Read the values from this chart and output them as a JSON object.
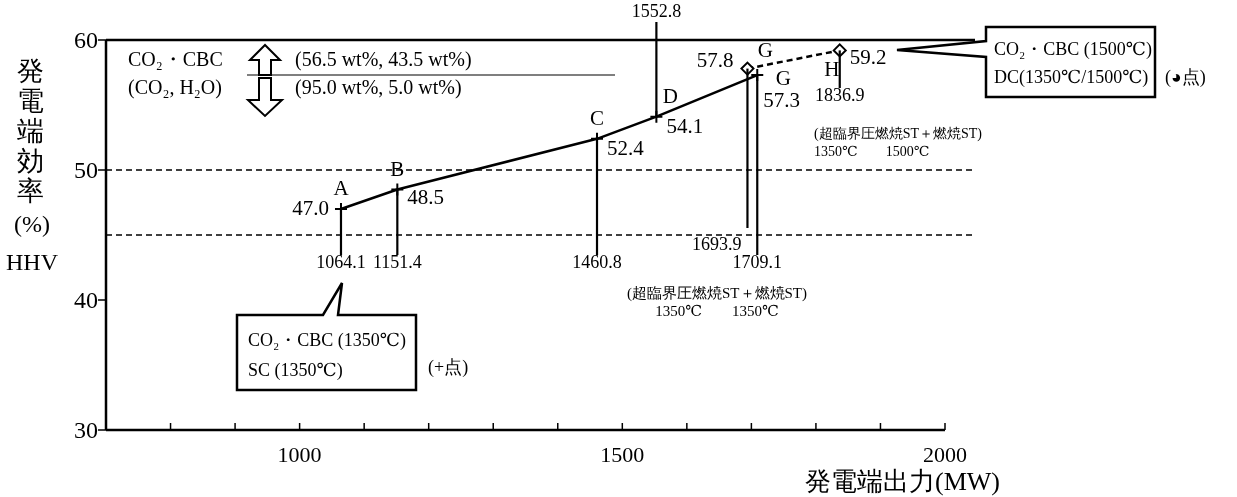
{
  "chart_data": {
    "type": "line",
    "xlabel": "発電端出力(MW)",
    "ylabel": "発電端効率\n(%)\nHHV",
    "xlim": [
      700,
      2000
    ],
    "xticks": [
      {
        "value": 700,
        "label": null
      },
      {
        "value": 800,
        "label": null
      },
      {
        "value": 900,
        "label": null
      },
      1000,
      {
        "value": 1100,
        "label": null
      },
      {
        "value": 1200,
        "label": null
      },
      {
        "value": 1300,
        "label": null
      },
      {
        "value": 1400,
        "label": null
      },
      1500,
      {
        "value": 1600,
        "label": null
      },
      {
        "value": 1700,
        "label": null
      },
      {
        "value": 1800,
        "label": null
      },
      {
        "value": 1900,
        "label": null
      },
      2000
    ],
    "ylim": [
      30,
      60
    ],
    "yticks": [
      30,
      40,
      50,
      60
    ],
    "grid": false,
    "series": [
      {
        "x": [
          1064.1,
          1151.4,
          1460.8,
          1552.8,
          1709.1
        ],
        "values": [
          47.0,
          48.5,
          52.4,
          54.1,
          57.3
        ],
        "color": "#000000",
        "marker": "cross",
        "line_style": "solid",
        "value_labels": [
          "47.0",
          "48.5",
          "52.4",
          "54.1",
          "57.3"
        ]
      },
      {
        "x": [
          1693.9,
          1836.9
        ],
        "values": [
          57.8,
          59.2
        ],
        "color": "#000000",
        "marker": "diamond",
        "line_style": "dashed",
        "value_labels": [
          "57.8",
          "59.2"
        ]
      }
    ],
    "ref_lines": [
      {
        "axis": "y",
        "value": 60,
        "color": "#000000",
        "line_style": "solid"
      },
      {
        "axis": "y",
        "value": 50,
        "color": "#000000",
        "line_style": "dashed"
      },
      {
        "axis": "y",
        "value": 45,
        "color": "#000000",
        "line_style": "dashed"
      }
    ],
    "annotations": [
      {
        "text": "A",
        "x": 1064.1,
        "y": 47.0
      },
      {
        "text": "B",
        "x": 1151.4,
        "y": 48.5
      },
      {
        "text": "C",
        "x": 1460.8,
        "y": 52.4
      },
      {
        "text": "D",
        "x": 1552.8,
        "y": 54.1
      },
      {
        "text": "G",
        "x": 1693.9,
        "y": 57.8
      },
      {
        "text": "G",
        "x": 1709.1,
        "y": 57.3
      },
      {
        "text": "H",
        "x": 1836.9,
        "y": 59.2
      },
      {
        "text": "1064.1",
        "x": 1064.1,
        "y": 47.0
      },
      {
        "text": "1151.4",
        "x": 1151.4,
        "y": 48.5
      },
      {
        "text": "1460.8",
        "x": 1460.8,
        "y": 52.4
      },
      {
        "text": "1552.8",
        "x": 1552.8,
        "y": 54.1
      },
      {
        "text": "1693.9",
        "x": 1693.9,
        "y": 57.8
      },
      {
        "text": "1709.1",
        "x": 1709.1,
        "y": 57.3
      },
      {
        "text": "1836.9",
        "x": 1836.9,
        "y": 59.2
      },
      "CO₂・CBC",
      "(CO₂, H₂O)",
      "(56.5 wt%, 43.5 wt%)",
      "(95.0 wt%, 5.0 wt%)",
      "CO₂・CBC (1500℃)\nDC(1350℃/1500℃)",
      "(◕点)",
      "CO₂・CBC (1350℃)\nSC (1350℃)",
      "(+点)",
      "(超臨界圧燃焼ST＋燃焼ST)\n1350℃　　1500℃",
      "(超臨界圧燃焼ST＋燃焼ST)\n1350℃　　1350℃"
    ]
  }
}
